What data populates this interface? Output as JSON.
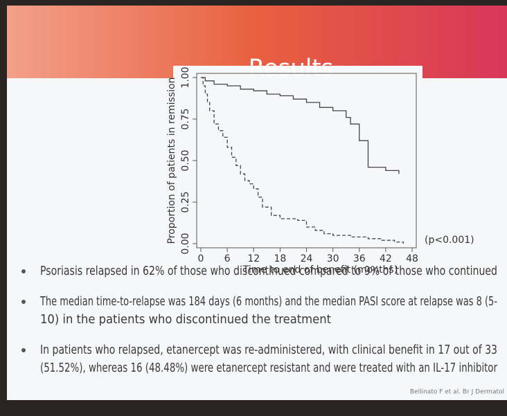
{
  "slide": {
    "title": "Results",
    "bullets": [
      [
        "Psoriasis relapsed in 62% of those who discontinued compared to 9% of those who continued"
      ],
      [
        "The median time-to-relapse was 184 days (6 months) and the median PASI score at relapse was 8 (5-",
        "10) in the patients who discontinued the treatment"
      ],
      [
        "In patients who relapsed, etanercept was re-administered, with clinical benefit in 17 out of 33",
        "(51.52%), whereas 16 (48.48%) were etanercept resistant and were treated with an IL-17 inhibitor"
      ]
    ],
    "citation": "Bellinato F et al. Br J Dermatol"
  },
  "chart_data": {
    "type": "step",
    "x_label": "Time to end of benefit (months)",
    "y_label": "Proportion of patients in remission",
    "annotation": "(p<0.001)",
    "xlim": [
      0,
      48
    ],
    "xticks": [
      0,
      6,
      12,
      18,
      24,
      30,
      36,
      42,
      48
    ],
    "ylim": [
      0,
      1
    ],
    "yticks": [
      {
        "value": 0,
        "label": "0.00"
      },
      {
        "value": 0.25,
        "label": "0.25"
      },
      {
        "value": 0.5,
        "label": "0.50"
      },
      {
        "value": 0.75,
        "label": "0.75"
      },
      {
        "value": 1,
        "label": "1.00"
      }
    ],
    "series": [
      {
        "color": "#444444",
        "dash": false,
        "x": [
          0,
          1,
          3,
          6,
          9,
          12,
          15,
          18,
          21,
          24,
          27,
          30,
          33,
          34,
          36,
          38,
          42,
          45
        ],
        "values": [
          1,
          0.98,
          0.96,
          0.95,
          0.93,
          0.92,
          0.9,
          0.89,
          0.87,
          0.85,
          0.82,
          0.8,
          0.76,
          0.72,
          0.62,
          0.46,
          0.44,
          0.42
        ]
      },
      {
        "color": "#444444",
        "dash": true,
        "x": [
          0,
          0.5,
          1,
          1.5,
          2,
          3,
          4,
          5,
          6,
          7,
          8,
          9,
          10,
          11,
          12,
          13,
          14,
          16,
          18,
          22,
          24,
          26,
          28,
          30,
          34,
          38,
          41,
          44,
          46
        ],
        "values": [
          1,
          0.95,
          0.9,
          0.85,
          0.8,
          0.72,
          0.68,
          0.64,
          0.58,
          0.52,
          0.47,
          0.42,
          0.38,
          0.36,
          0.33,
          0.28,
          0.22,
          0.17,
          0.15,
          0.14,
          0.1,
          0.08,
          0.06,
          0.05,
          0.04,
          0.03,
          0.02,
          0.01,
          0
        ]
      }
    ]
  }
}
